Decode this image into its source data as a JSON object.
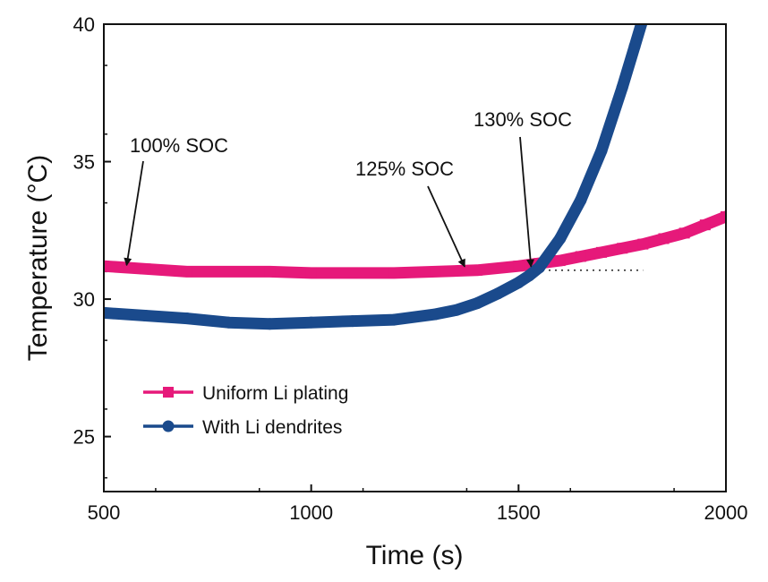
{
  "chart_data": {
    "type": "line",
    "xlabel": "Time (s)",
    "ylabel": "Temperature (°C)",
    "xlim": [
      500,
      2000
    ],
    "ylim": [
      23,
      40
    ],
    "xticks": [
      500,
      1000,
      1500,
      2000
    ],
    "yticks": [
      25,
      30,
      35,
      40
    ],
    "legend_placement": "lower-left",
    "series": [
      {
        "name": "Uniform Li plating",
        "color": "#e6197a",
        "marker": "square",
        "x": [
          500,
          600,
          700,
          800,
          900,
          1000,
          1100,
          1200,
          1300,
          1400,
          1500,
          1550,
          1600,
          1650,
          1700,
          1750,
          1800,
          1850,
          1900,
          1950,
          2000
        ],
        "y": [
          31.2,
          31.1,
          31.0,
          31.0,
          31.0,
          30.95,
          30.95,
          30.95,
          31.0,
          31.05,
          31.2,
          31.3,
          31.4,
          31.55,
          31.7,
          31.85,
          32.0,
          32.2,
          32.4,
          32.7,
          33.0
        ]
      },
      {
        "name": "With Li dendrites",
        "color": "#1a4a8c",
        "marker": "circle",
        "x": [
          500,
          600,
          700,
          800,
          900,
          1000,
          1100,
          1200,
          1300,
          1350,
          1400,
          1450,
          1500,
          1525,
          1550,
          1600,
          1650,
          1700,
          1750,
          1780,
          1800
        ],
        "y": [
          29.5,
          29.4,
          29.3,
          29.15,
          29.1,
          29.15,
          29.2,
          29.25,
          29.45,
          29.6,
          29.85,
          30.2,
          30.6,
          30.85,
          31.15,
          32.2,
          33.6,
          35.4,
          37.7,
          39.2,
          40.2
        ]
      }
    ],
    "reference_line": {
      "style": "dotted",
      "x": [
        500,
        1800
      ],
      "y": 31.05
    },
    "annotations": [
      {
        "text": "100% SOC",
        "x": 555,
        "y": 31.1
      },
      {
        "text": "125% SOC",
        "x": 1370,
        "y": 31.05
      },
      {
        "text": "130% SOC",
        "x": 1530,
        "y": 31.05
      }
    ]
  }
}
